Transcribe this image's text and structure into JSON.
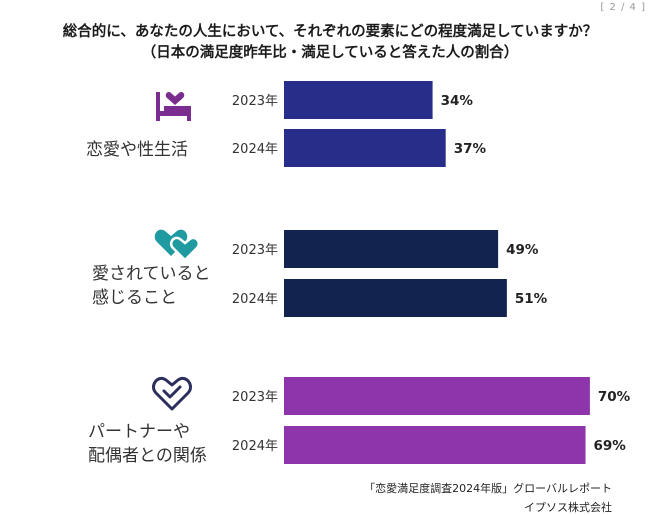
{
  "page_indicator": "[ 2 / 4 ]",
  "title_line1": "総合的に、あなたの人生において、それぞれの要素にどの程度満足していますか？",
  "title_line2": "（日本の満足度昨年比・満足していると答えた人の割合）",
  "categories": [
    {
      "label_lines": [
        "恋愛や性生活"
      ],
      "icon": "bed-heart-icon",
      "color": "#282d8a"
    },
    {
      "label_lines": [
        "愛されていると",
        "感じること"
      ],
      "icon": "two-hearts-icon",
      "color": "#132350"
    },
    {
      "label_lines": [
        "パートナーや",
        "配偶者との関係"
      ],
      "icon": "heart-check-icon",
      "color": "#8f35ab"
    }
  ],
  "icon_colors": {
    "bed-heart-icon": "#7b2c8f",
    "two-hearts-icon": "#1f9aa0",
    "heart-check-icon": "#2c2f5e"
  },
  "chart_data": {
    "type": "bar",
    "orientation": "horizontal",
    "title": "総合的に、あなたの人生において、それぞれの要素にどの程度満足していますか？",
    "subtitle": "（日本の満足度昨年比・満足していると答えた人の割合）",
    "categories": [
      "恋愛や性生活",
      "愛されていると感じること",
      "パートナーや配偶者との関係"
    ],
    "series": [
      {
        "name": "2023年",
        "values": [
          34,
          49,
          70
        ]
      },
      {
        "name": "2024年",
        "values": [
          37,
          51,
          69
        ]
      }
    ],
    "value_suffix": "%",
    "xlim": [
      0,
      100
    ],
    "grid": false,
    "legend": "none"
  },
  "source_line1": "「恋愛満足度調査2024年版」グローバルレポート",
  "source_line2": "イプソス株式会社"
}
